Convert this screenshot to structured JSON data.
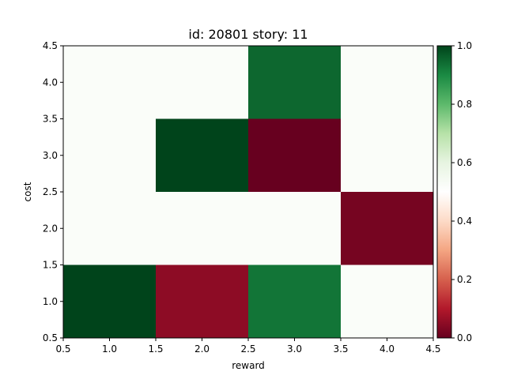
{
  "chart_data": {
    "type": "heatmap",
    "title": "id: 20801 story: 11",
    "xlabel": "reward",
    "ylabel": "cost",
    "xlim": [
      0.5,
      4.5
    ],
    "ylim": [
      0.5,
      4.5
    ],
    "x_ticks": [
      "0.5",
      "1.0",
      "1.5",
      "2.0",
      "2.5",
      "3.0",
      "3.5",
      "4.0",
      "4.5"
    ],
    "y_ticks": [
      "0.5",
      "1.0",
      "1.5",
      "2.0",
      "2.5",
      "3.0",
      "3.5",
      "4.0",
      "4.5"
    ],
    "x": [
      1,
      2,
      3,
      4
    ],
    "y": [
      1,
      2,
      3,
      4
    ],
    "values": [
      [
        1.0,
        0.05,
        0.93,
        0.52
      ],
      [
        0.52,
        0.52,
        0.52,
        0.02
      ],
      [
        0.52,
        1.0,
        0.0,
        0.52
      ],
      [
        0.52,
        0.52,
        0.95,
        0.52
      ]
    ],
    "colormap": "RdYlGn-like diverging (red → white → green)",
    "colorbar": {
      "range": [
        0.0,
        1.0
      ],
      "ticks": [
        "0.0",
        "0.2",
        "0.4",
        "0.6",
        "0.8",
        "1.0"
      ]
    },
    "grid": false
  }
}
